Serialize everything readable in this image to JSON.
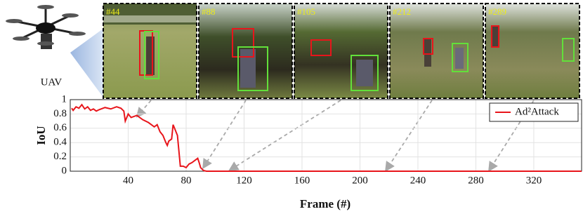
{
  "chart_data": {
    "type": "line",
    "side_label": "UAV",
    "frames": [
      "#44",
      "#88",
      "#105",
      "#212",
      "#289"
    ],
    "x_label": "Frame (#)",
    "y_label": "IoU",
    "x": [
      1,
      2,
      4,
      6,
      8,
      10,
      12,
      14,
      16,
      18,
      20,
      24,
      28,
      32,
      35,
      37,
      38,
      40,
      42,
      46,
      50,
      54,
      58,
      60,
      62,
      64,
      66,
      67,
      68,
      70,
      71,
      72,
      74,
      76,
      78,
      80,
      82,
      84,
      86,
      88,
      89,
      90,
      92,
      94,
      353
    ],
    "series": [
      {
        "name": "Ad²Attack",
        "color": "#e8151b",
        "values": [
          0.88,
          0.85,
          0.9,
          0.88,
          0.93,
          0.87,
          0.9,
          0.85,
          0.87,
          0.84,
          0.86,
          0.89,
          0.87,
          0.9,
          0.88,
          0.84,
          0.7,
          0.8,
          0.75,
          0.78,
          0.72,
          0.68,
          0.62,
          0.65,
          0.55,
          0.5,
          0.4,
          0.36,
          0.42,
          0.45,
          0.65,
          0.6,
          0.5,
          0.07,
          0.07,
          0.05,
          0.1,
          0.12,
          0.15,
          0.18,
          0.12,
          0.05,
          0.01,
          0,
          0
        ]
      }
    ],
    "xlim": [
      0,
      353
    ],
    "ylim": [
      0,
      1
    ],
    "xticks": [
      40,
      80,
      120,
      160,
      200,
      240,
      280,
      320
    ],
    "yticks": [
      0,
      0.2,
      0.4,
      0.6,
      0.8,
      1
    ],
    "grid": true,
    "legend": "upper right"
  }
}
